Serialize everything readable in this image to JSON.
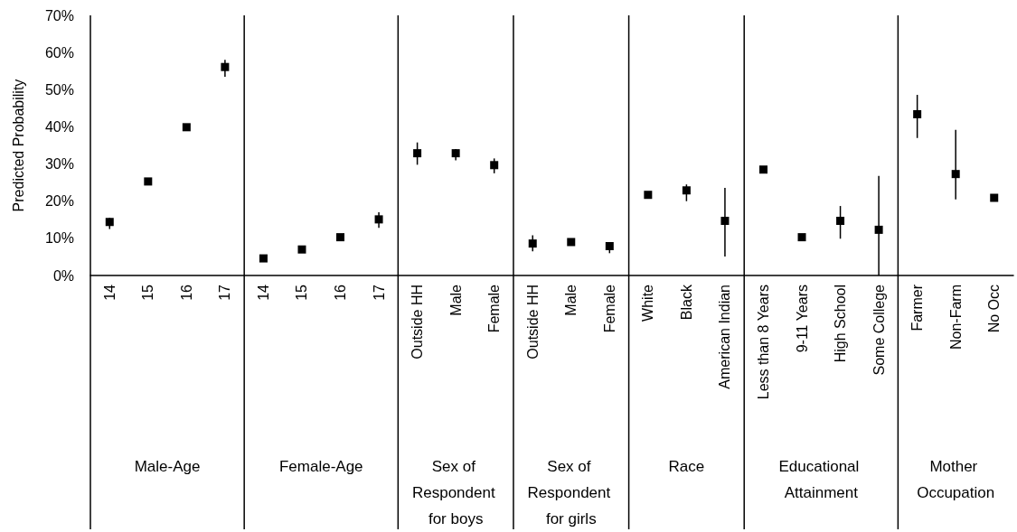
{
  "chart_data": {
    "type": "scatter",
    "ylabel": "Predicted Probability",
    "marker": "square",
    "grid": false,
    "categories": [
      "14",
      "15",
      "16",
      "17",
      "14",
      "15",
      "16",
      "17",
      "Outside HH",
      "Male",
      "Female",
      "Outside HH",
      "Male",
      "Female",
      "White",
      "Black",
      "American Indian",
      "Less than 8 Years",
      "9-11 Years",
      "High School",
      "Some College",
      "Farmer",
      "Non-Farm",
      "No Occ"
    ],
    "ylim": [
      0,
      70
    ],
    "yticks": [
      {
        "value": 0,
        "label": "0%"
      },
      {
        "value": 10,
        "label": "10%"
      },
      {
        "value": 20,
        "label": "20%"
      },
      {
        "value": 30,
        "label": "30%"
      },
      {
        "value": 40,
        "label": "40%"
      },
      {
        "value": 50,
        "label": "50%"
      },
      {
        "value": 60,
        "label": "60%"
      },
      {
        "value": 70,
        "label": "70%"
      }
    ],
    "annotations": [
      "Male-Age",
      "Female-Age",
      "Sex of Respondent for boys",
      "Sex of Respondent for girls",
      "Race",
      "Educational Attainment",
      "Mother Occupation"
    ],
    "series": [
      {
        "color": "#000000",
        "values": [
          14.4,
          25.3,
          39.9,
          56.1,
          null,
          null,
          null,
          null,
          null,
          null,
          null,
          null,
          null,
          null,
          null,
          null,
          null,
          null,
          null,
          null,
          null,
          null,
          null,
          null
        ],
        "errors": [
          [
            12.5,
            15.5
          ],
          null,
          null,
          [
            53.5,
            58
          ],
          null,
          null,
          null,
          null,
          null,
          null,
          null,
          null,
          null,
          null,
          null,
          null,
          null,
          null,
          null,
          null,
          null,
          null,
          null,
          null
        ]
      },
      {
        "color": "#000000",
        "values": [
          null,
          null,
          null,
          null,
          4.6,
          7.0,
          10.3,
          15.1,
          null,
          null,
          null,
          null,
          null,
          null,
          null,
          null,
          null,
          null,
          null,
          null,
          null,
          null,
          null,
          null
        ],
        "errors": [
          null,
          null,
          null,
          null,
          null,
          null,
          null,
          [
            12.8,
            17
          ],
          null,
          null,
          null,
          null,
          null,
          null,
          null,
          null,
          null,
          null,
          null,
          null,
          null,
          null,
          null,
          null
        ]
      },
      {
        "color": "#000000",
        "values": [
          null,
          null,
          null,
          null,
          null,
          null,
          null,
          null,
          32.9,
          32.9,
          29.7,
          null,
          null,
          null,
          null,
          null,
          null,
          null,
          null,
          null,
          null,
          null,
          null,
          null
        ],
        "errors": [
          null,
          null,
          null,
          null,
          null,
          null,
          null,
          null,
          [
            29.8,
            35.8
          ],
          [
            31,
            34
          ],
          [
            27.5,
            31.5
          ],
          null,
          null,
          null,
          null,
          null,
          null,
          null,
          null,
          null,
          null,
          null,
          null,
          null
        ]
      },
      {
        "color": "#000000",
        "values": [
          null,
          null,
          null,
          null,
          null,
          null,
          null,
          null,
          null,
          null,
          null,
          8.6,
          9.0,
          7.9,
          null,
          null,
          null,
          null,
          null,
          null,
          null,
          null,
          null,
          null
        ],
        "errors": [
          null,
          null,
          null,
          null,
          null,
          null,
          null,
          null,
          null,
          null,
          null,
          [
            6.5,
            10.8
          ],
          null,
          [
            6,
            8.5
          ],
          null,
          null,
          null,
          null,
          null,
          null,
          null,
          null,
          null,
          null
        ]
      },
      {
        "color": "#000000",
        "values": [
          null,
          null,
          null,
          null,
          null,
          null,
          null,
          null,
          null,
          null,
          null,
          null,
          null,
          null,
          21.7,
          22.9,
          14.7,
          null,
          null,
          null,
          null,
          null,
          null,
          null
        ],
        "errors": [
          null,
          null,
          null,
          null,
          null,
          null,
          null,
          null,
          null,
          null,
          null,
          null,
          null,
          null,
          null,
          [
            20,
            24.5
          ],
          [
            5.1,
            23.6
          ],
          null,
          null,
          null,
          null,
          null,
          null,
          null
        ]
      },
      {
        "color": "#000000",
        "values": [
          null,
          null,
          null,
          null,
          null,
          null,
          null,
          null,
          null,
          null,
          null,
          null,
          null,
          null,
          null,
          null,
          null,
          28.5,
          10.3,
          14.7,
          12.3,
          null,
          null,
          null
        ],
        "errors": [
          null,
          null,
          null,
          null,
          null,
          null,
          null,
          null,
          null,
          null,
          null,
          null,
          null,
          null,
          null,
          null,
          null,
          null,
          null,
          [
            9.9,
            18.7
          ],
          [
            0,
            26.8
          ],
          null,
          null,
          null
        ]
      },
      {
        "color": "#000000",
        "values": [
          null,
          null,
          null,
          null,
          null,
          null,
          null,
          null,
          null,
          null,
          null,
          null,
          null,
          null,
          null,
          null,
          null,
          null,
          null,
          null,
          null,
          43.4,
          27.3,
          20.9
        ],
        "errors": [
          null,
          null,
          null,
          null,
          null,
          null,
          null,
          null,
          null,
          null,
          null,
          null,
          null,
          null,
          null,
          null,
          null,
          null,
          null,
          null,
          null,
          [
            37,
            48.6
          ],
          [
            20.5,
            39.2
          ],
          null
        ]
      }
    ]
  }
}
